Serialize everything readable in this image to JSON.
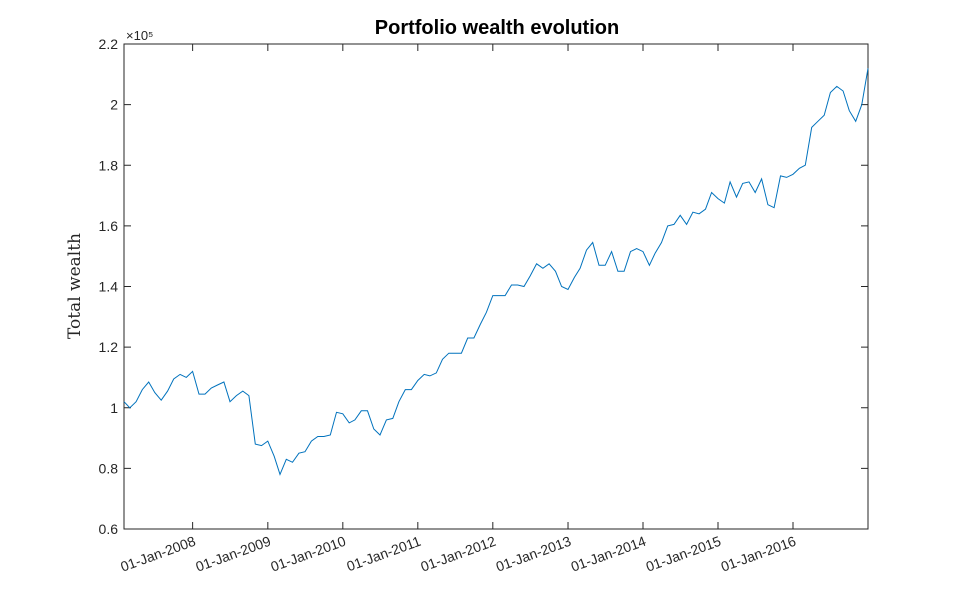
{
  "chart_data": {
    "type": "line",
    "title": "Portfolio wealth evolution",
    "xlabel": "",
    "ylabel": "Total wealth",
    "y_exponent_label": "×10⁵",
    "y_scale_factor": 100000,
    "ylim": [
      0.6,
      2.2
    ],
    "xlim": [
      "2007-02-01",
      "2016-12-31"
    ],
    "y_ticks": [
      0.6,
      0.8,
      1,
      1.2,
      1.4,
      1.6,
      1.8,
      2,
      2.2
    ],
    "y_tick_labels": [
      "0.6",
      "0.8",
      "1",
      "1.2",
      "1.4",
      "1.6",
      "1.8",
      "2",
      "2.2"
    ],
    "x_ticks": [
      "2008-01-01",
      "2009-01-01",
      "2010-01-01",
      "2011-01-01",
      "2012-01-01",
      "2013-01-01",
      "2014-01-01",
      "2015-01-01",
      "2016-01-01"
    ],
    "x_tick_labels": [
      "01-Jan-2008",
      "01-Jan-2009",
      "01-Jan-2010",
      "01-Jan-2011",
      "01-Jan-2012",
      "01-Jan-2013",
      "01-Jan-2014",
      "01-Jan-2015",
      "01-Jan-2016"
    ],
    "grid": false,
    "colors": {
      "line": "#0072BD",
      "axes": "#262626"
    },
    "series": [
      {
        "x": [
          "2007-02-01",
          "2007-03-01",
          "2007-04-01",
          "2007-05-01",
          "2007-06-01",
          "2007-07-01",
          "2007-08-01",
          "2007-09-01",
          "2007-10-01",
          "2007-11-01",
          "2007-12-01",
          "2008-01-01",
          "2008-02-01",
          "2008-03-01",
          "2008-04-01",
          "2008-05-01",
          "2008-06-01",
          "2008-07-01",
          "2008-08-01",
          "2008-09-01",
          "2008-10-01",
          "2008-11-01",
          "2008-12-01",
          "2009-01-01",
          "2009-02-01",
          "2009-03-01",
          "2009-04-01",
          "2009-05-01",
          "2009-06-01",
          "2009-07-01",
          "2009-08-01",
          "2009-09-01",
          "2009-10-01",
          "2009-11-01",
          "2009-12-01",
          "2010-01-01",
          "2010-02-01",
          "2010-03-01",
          "2010-04-01",
          "2010-05-01",
          "2010-06-01",
          "2010-07-01",
          "2010-08-01",
          "2010-09-01",
          "2010-10-01",
          "2010-11-01",
          "2010-12-01",
          "2011-01-01",
          "2011-02-01",
          "2011-03-01",
          "2011-04-01",
          "2011-05-01",
          "2011-06-01",
          "2011-07-01",
          "2011-08-01",
          "2011-09-01",
          "2011-10-01",
          "2011-11-01",
          "2011-12-01",
          "2012-01-01",
          "2012-02-01",
          "2012-03-01",
          "2012-04-01",
          "2012-05-01",
          "2012-06-01",
          "2012-07-01",
          "2012-08-01",
          "2012-09-01",
          "2012-10-01",
          "2012-11-01",
          "2012-12-01",
          "2013-01-01",
          "2013-02-01",
          "2013-03-01",
          "2013-04-01",
          "2013-05-01",
          "2013-06-01",
          "2013-07-01",
          "2013-08-01",
          "2013-09-01",
          "2013-10-01",
          "2013-11-01",
          "2013-12-01",
          "2014-01-01",
          "2014-02-01",
          "2014-03-01",
          "2014-04-01",
          "2014-05-01",
          "2014-06-01",
          "2014-07-01",
          "2014-08-01",
          "2014-09-01",
          "2014-10-01",
          "2014-11-01",
          "2014-12-01",
          "2015-01-01",
          "2015-02-01",
          "2015-03-01",
          "2015-04-01",
          "2015-05-01",
          "2015-06-01",
          "2015-07-01",
          "2015-08-01",
          "2015-09-01",
          "2015-10-01",
          "2015-11-01",
          "2015-12-01",
          "2016-01-01",
          "2016-02-01",
          "2016-03-01",
          "2016-04-01",
          "2016-05-01",
          "2016-06-01",
          "2016-07-01",
          "2016-08-01",
          "2016-09-01",
          "2016-10-01",
          "2016-11-01",
          "2016-12-01",
          "2016-12-31"
        ],
        "y": [
          1.02,
          1.0,
          1.02,
          1.06,
          1.085,
          1.05,
          1.025,
          1.055,
          1.095,
          1.11,
          1.1,
          1.12,
          1.045,
          1.045,
          1.065,
          1.075,
          1.085,
          1.02,
          1.04,
          1.055,
          1.04,
          0.88,
          0.875,
          0.89,
          0.84,
          0.78,
          0.83,
          0.82,
          0.85,
          0.855,
          0.89,
          0.905,
          0.905,
          0.91,
          0.985,
          0.98,
          0.95,
          0.96,
          0.99,
          0.99,
          0.93,
          0.91,
          0.96,
          0.965,
          1.02,
          1.06,
          1.06,
          1.09,
          1.11,
          1.105,
          1.115,
          1.16,
          1.18,
          1.18,
          1.18,
          1.23,
          1.23,
          1.275,
          1.315,
          1.37,
          1.37,
          1.37,
          1.405,
          1.405,
          1.4,
          1.435,
          1.475,
          1.46,
          1.475,
          1.45,
          1.4,
          1.39,
          1.43,
          1.46,
          1.52,
          1.545,
          1.47,
          1.47,
          1.515,
          1.45,
          1.45,
          1.515,
          1.525,
          1.515,
          1.47,
          1.51,
          1.545,
          1.6,
          1.605,
          1.635,
          1.605,
          1.645,
          1.64,
          1.655,
          1.71,
          1.69,
          1.675,
          1.745,
          1.695,
          1.74,
          1.745,
          1.71,
          1.755,
          1.67,
          1.66,
          1.765,
          1.76,
          1.77,
          1.79,
          1.8,
          1.925,
          1.945,
          1.965,
          2.04,
          2.06,
          2.045,
          1.98,
          1.945,
          2.0,
          2.12
        ]
      }
    ]
  }
}
